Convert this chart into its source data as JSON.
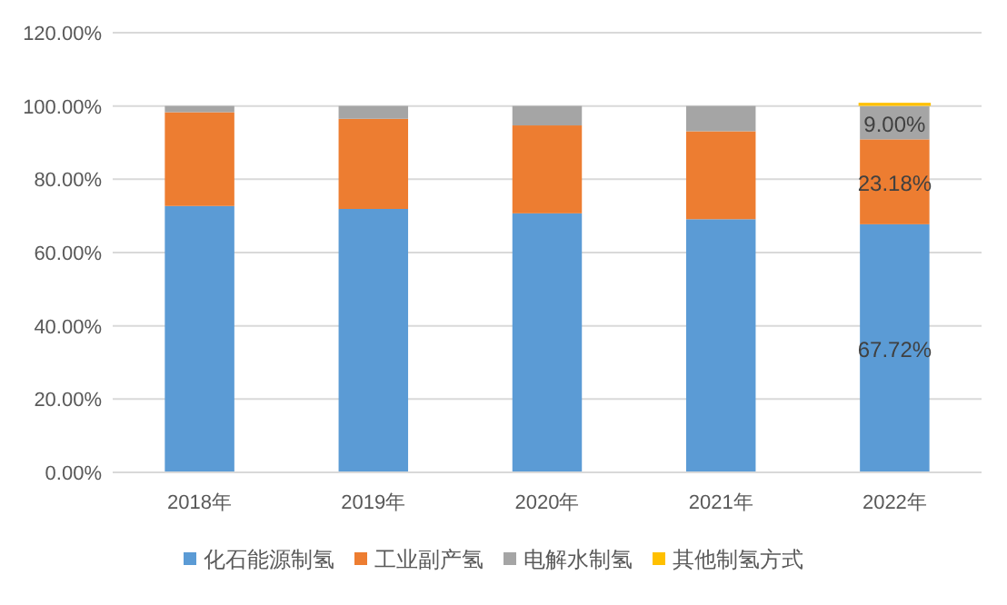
{
  "chart_data": {
    "type": "bar",
    "stacked": true,
    "categories": [
      "2018年",
      "2019年",
      "2020年",
      "2021年",
      "2022年"
    ],
    "series": [
      {
        "name": "化石能源制氢",
        "color": "#5b9bd5",
        "values": [
          72.7,
          71.9,
          70.7,
          69.1,
          67.72
        ],
        "value_labels": [
          null,
          null,
          null,
          null,
          "67.72%"
        ]
      },
      {
        "name": "工业副产氢",
        "color": "#ed7d31",
        "values": [
          25.6,
          24.6,
          24.0,
          24.0,
          23.18
        ],
        "value_labels": [
          null,
          null,
          null,
          null,
          "23.18%"
        ]
      },
      {
        "name": "电解水制氢",
        "color": "#a5a5a5",
        "values": [
          1.7,
          3.5,
          5.3,
          6.9,
          9.0
        ],
        "value_labels": [
          null,
          null,
          null,
          null,
          "9.00%"
        ]
      },
      {
        "name": "其他制氢方式",
        "color": "#ffc000",
        "values": [
          0,
          0,
          0,
          0,
          0.1
        ],
        "value_labels": [
          null,
          null,
          null,
          null,
          null
        ]
      }
    ],
    "ylim": [
      0,
      120
    ],
    "yticks": [
      {
        "value": 0,
        "label": "0.00%"
      },
      {
        "value": 20,
        "label": "20.00%"
      },
      {
        "value": 40,
        "label": "40.00%"
      },
      {
        "value": 60,
        "label": "60.00%"
      },
      {
        "value": 80,
        "label": "80.00%"
      },
      {
        "value": 100,
        "label": "100.00%"
      },
      {
        "value": 120,
        "label": "120.00%"
      }
    ],
    "grid": "y",
    "legend": "bottom"
  }
}
